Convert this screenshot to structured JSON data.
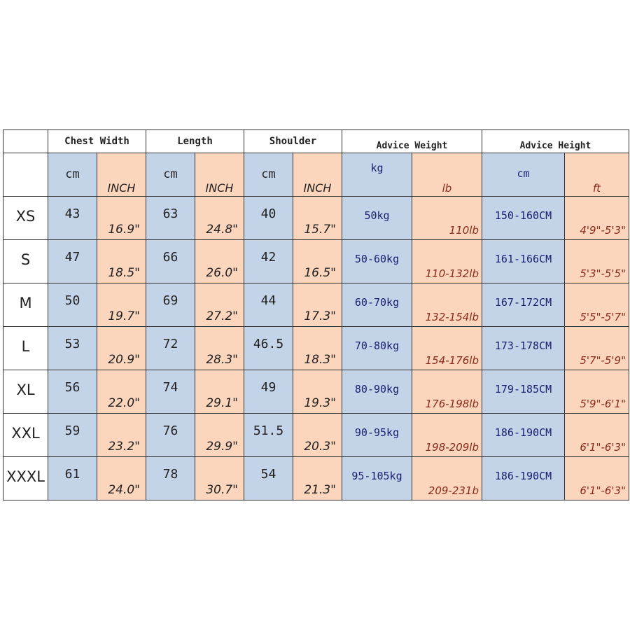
{
  "headers": {
    "groups": [
      "Chest Width",
      "Length",
      "Shoulder",
      "Advice Weight",
      "Advice Height"
    ],
    "units": [
      "cm",
      "INCH",
      "cm",
      "INCH",
      "cm",
      "INCH",
      "kg",
      "lb",
      "cm",
      "ft"
    ]
  },
  "colors": {
    "cm_cell": "#c3d3e8",
    "imperial_cell": "#fcd6bc",
    "metric_text": "#1c1c6e",
    "imperial_text": "#8a2b1b"
  },
  "rows": [
    {
      "size": "XS",
      "chest_cm": "43",
      "chest_in": "16.9\"",
      "length_cm": "63",
      "length_in": "24.8\"",
      "shoulder_cm": "40",
      "shoulder_in": "15.7\"",
      "weight_kg": "50kg",
      "weight_lb": "110lb",
      "height_cm": "150-160CM",
      "height_ft": "4'9\"-5'3\""
    },
    {
      "size": "S",
      "chest_cm": "47",
      "chest_in": "18.5\"",
      "length_cm": "66",
      "length_in": "26.0\"",
      "shoulder_cm": "42",
      "shoulder_in": "16.5\"",
      "weight_kg": "50-60kg",
      "weight_lb": "110-132lb",
      "height_cm": "161-166CM",
      "height_ft": "5'3\"-5'5\""
    },
    {
      "size": "M",
      "chest_cm": "50",
      "chest_in": "19.7\"",
      "length_cm": "69",
      "length_in": "27.2\"",
      "shoulder_cm": "44",
      "shoulder_in": "17.3\"",
      "weight_kg": "60-70kg",
      "weight_lb": "132-154lb",
      "height_cm": "167-172CM",
      "height_ft": "5'5\"-5'7\""
    },
    {
      "size": "L",
      "chest_cm": "53",
      "chest_in": "20.9\"",
      "length_cm": "72",
      "length_in": "28.3\"",
      "shoulder_cm": "46.5",
      "shoulder_in": "18.3\"",
      "weight_kg": "70-80kg",
      "weight_lb": "154-176lb",
      "height_cm": "173-178CM",
      "height_ft": "5'7\"-5'9\""
    },
    {
      "size": "XL",
      "chest_cm": "56",
      "chest_in": "22.0\"",
      "length_cm": "74",
      "length_in": "29.1\"",
      "shoulder_cm": "49",
      "shoulder_in": "19.3\"",
      "weight_kg": "80-90kg",
      "weight_lb": "176-198lb",
      "height_cm": "179-185CM",
      "height_ft": "5'9\"-6'1\""
    },
    {
      "size": "XXL",
      "chest_cm": "59",
      "chest_in": "23.2\"",
      "length_cm": "76",
      "length_in": "29.9\"",
      "shoulder_cm": "51.5",
      "shoulder_in": "20.3\"",
      "weight_kg": "90-95kg",
      "weight_lb": "198-209lb",
      "height_cm": "186-190CM",
      "height_ft": "6'1\"-6'3\""
    },
    {
      "size": "XXXL",
      "chest_cm": "61",
      "chest_in": "24.0\"",
      "length_cm": "78",
      "length_in": "30.7\"",
      "shoulder_cm": "54",
      "shoulder_in": "21.3\"",
      "weight_kg": "95-105kg",
      "weight_lb": "209-231b",
      "height_cm": "186-190CM",
      "height_ft": "6'1\"-6'3\""
    }
  ]
}
